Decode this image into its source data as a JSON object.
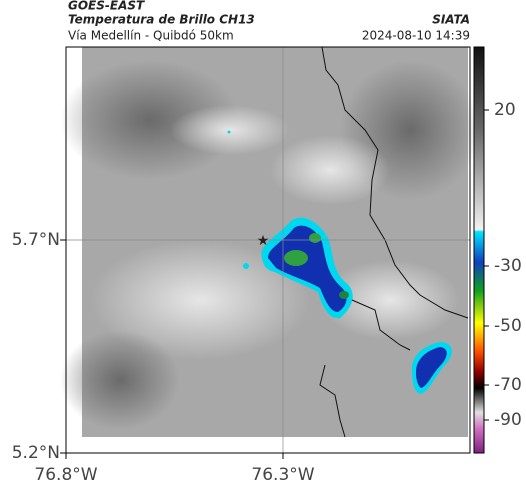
{
  "header": {
    "title": "GOES-EAST",
    "subtitle": "Temperatura de Brillo CH13",
    "source": "SIATA",
    "route": "Vía Medellín - Quibdó 50km",
    "datetime": "2024-08-10 14:39"
  },
  "map": {
    "lat_ticks": [
      "5.7°N",
      "5.2°N"
    ],
    "lon_ticks": [
      "76.8°W",
      "76.3°W"
    ]
  },
  "colorbar": {
    "ticks": [
      20,
      -30,
      -50,
      -70,
      -90
    ]
  }
}
